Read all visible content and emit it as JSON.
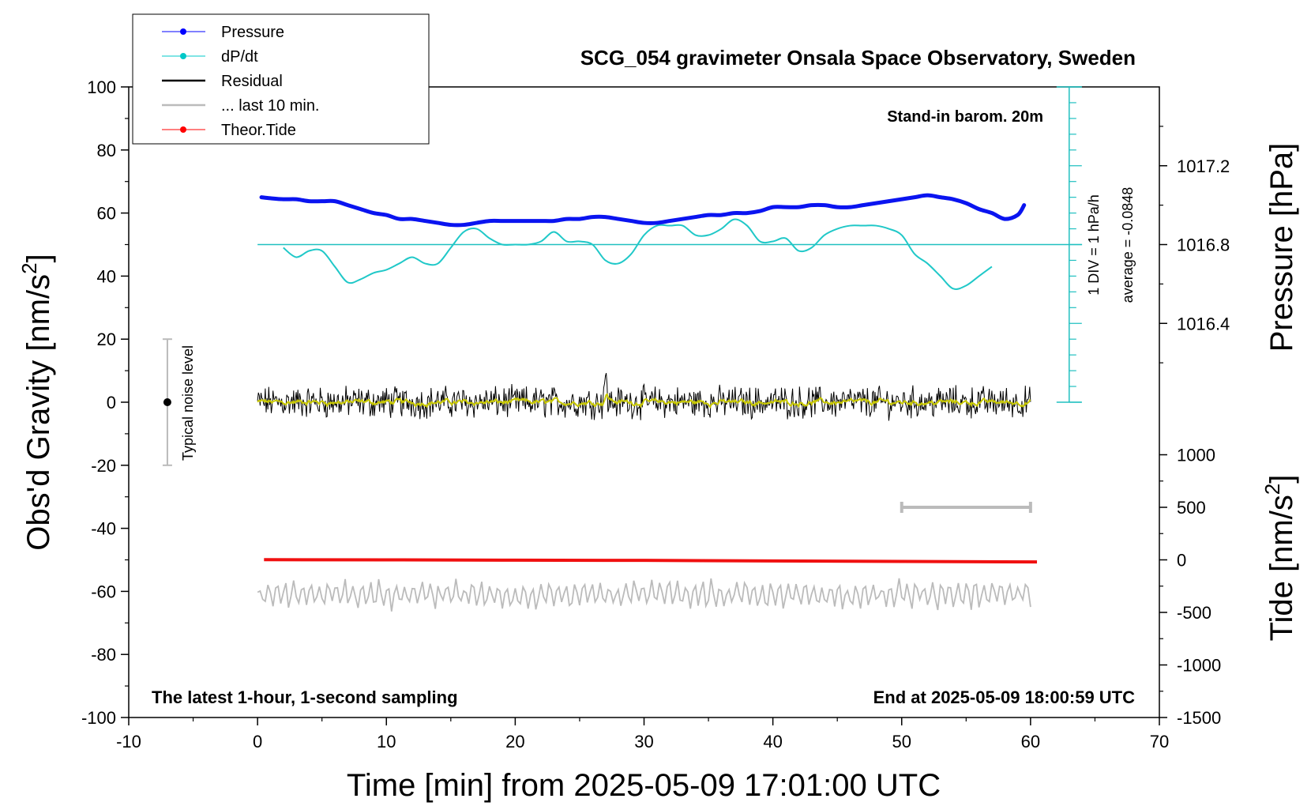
{
  "chart_data": {
    "type": "line",
    "title": "SCG_054 gravimeter Onsala Space Observatory, Sweden",
    "xlabel": "Time [min] from 2025-05-09 17:01:00 UTC",
    "ylabel": "Obs'd Gravity [nm/s",
    "ylabel_sup": "2",
    "ylabel_end": "]",
    "y2label": "Pressure [hPa]",
    "y3label": "Tide [nm/s",
    "y3label_sup": "2",
    "y3label_end": "]",
    "xlim": [
      -10,
      70
    ],
    "ylim": [
      -100,
      100
    ],
    "xticks": [
      "-10",
      "0",
      "10",
      "20",
      "30",
      "40",
      "50",
      "60",
      "70"
    ],
    "yticks": [
      "100",
      "80",
      "60",
      "40",
      "20",
      "0",
      "-20",
      "-40",
      "-60",
      "-80",
      "-100"
    ],
    "pressure_ticks": [
      "1017.2",
      "1016.8",
      "1016.4"
    ],
    "pressure_tick_values": [
      1017.2,
      1016.8,
      1016.4
    ],
    "tide_ticks": [
      "1000",
      "500",
      "0",
      "-500",
      "-1000",
      "-1500"
    ],
    "tide_tick_values": [
      1000,
      500,
      0,
      -500,
      -1000,
      -1500
    ],
    "grid": false,
    "legend_position": "top-left",
    "legend": [
      {
        "label": "Pressure",
        "color": "#0000ff",
        "style": "line-dot"
      },
      {
        "label": "dP/dt",
        "color": "#00c8c8",
        "style": "line-dot"
      },
      {
        "label": "Residual",
        "color": "#000000",
        "style": "line"
      },
      {
        "label": "... last 10 min.",
        "color": "#bbbbbb",
        "style": "line"
      },
      {
        "label": "Theor.Tide",
        "color": "#ff0000",
        "style": "line-dot"
      }
    ],
    "annotations": {
      "barometer": "Stand-in barom. 20m",
      "latest": "The latest 1-hour, 1-second sampling",
      "end": "End at 2025-05-09 18:00:59 UTC",
      "noise": "Typical noise level",
      "div": "1 DIV = 1 hPa/h",
      "average": "average = -0.0848"
    },
    "noise_range": [
      -20,
      20
    ],
    "noise_x": -7,
    "dpdt_baseline_y": 50,
    "dpdt_scale": {
      "x": 63,
      "ylim": [
        0,
        100
      ]
    },
    "last10_marker": {
      "x": [
        50,
        60
      ],
      "tide": 500
    },
    "series": [
      {
        "name": "Pressure",
        "axis": "pressure",
        "x": [
          0.3,
          1,
          2,
          3,
          4,
          5,
          6,
          7,
          8,
          9,
          10,
          11,
          12,
          13,
          14,
          15,
          16,
          17,
          18,
          19,
          20,
          21,
          22,
          23,
          24,
          25,
          26,
          27,
          28,
          29,
          30,
          31,
          32,
          33,
          34,
          35,
          36,
          37,
          38,
          39,
          40,
          41,
          42,
          43,
          44,
          45,
          46,
          47,
          48,
          49,
          50,
          51,
          52,
          53,
          54,
          55,
          56,
          57,
          58,
          59,
          59.5
        ],
        "y": [
          1017.04,
          1017.035,
          1017.03,
          1017.03,
          1017.02,
          1017.02,
          1017.02,
          1017.0,
          1016.98,
          1016.96,
          1016.95,
          1016.93,
          1016.93,
          1016.92,
          1016.91,
          1016.9,
          1016.9,
          1016.91,
          1016.92,
          1016.92,
          1016.92,
          1016.92,
          1016.92,
          1016.92,
          1016.93,
          1016.93,
          1016.94,
          1016.94,
          1016.93,
          1016.92,
          1016.91,
          1016.91,
          1016.92,
          1016.93,
          1016.94,
          1016.95,
          1016.95,
          1016.96,
          1016.96,
          1016.97,
          1016.99,
          1016.99,
          1016.99,
          1017.0,
          1017.0,
          1016.99,
          1016.99,
          1017.0,
          1017.01,
          1017.02,
          1017.03,
          1017.04,
          1017.05,
          1017.04,
          1017.03,
          1017.01,
          1016.98,
          1016.96,
          1016.93,
          1016.95,
          1017.0
        ]
      },
      {
        "name": "dP/dt",
        "axis": "gravity",
        "x": [
          2,
          3,
          4,
          5,
          6,
          7,
          8,
          9,
          10,
          11,
          12,
          13,
          14,
          15,
          16,
          17,
          18,
          19,
          20,
          21,
          22,
          23,
          24,
          25,
          26,
          27,
          28,
          29,
          30,
          31,
          32,
          33,
          34,
          35,
          36,
          37,
          38,
          39,
          40,
          41,
          42,
          43,
          44,
          45,
          46,
          47,
          48,
          49,
          50,
          51,
          52,
          53,
          54,
          55,
          56,
          57
        ],
        "y": [
          49,
          46,
          48,
          48,
          43,
          38,
          39,
          41,
          42,
          44,
          46,
          44,
          44,
          49,
          54,
          55,
          52,
          50,
          50,
          50,
          51,
          54,
          51,
          51,
          50,
          45,
          44,
          47,
          53,
          56,
          56,
          56,
          53,
          53,
          55,
          58,
          56,
          51,
          51,
          52,
          48,
          49,
          53,
          55,
          56,
          56,
          56,
          55,
          53,
          47,
          44,
          40,
          36,
          37,
          40,
          43
        ]
      },
      {
        "name": "Theor.Tide",
        "axis": "tide",
        "x": [
          0.5,
          10,
          20,
          30,
          40,
          50,
          60.5
        ],
        "y": [
          2,
          0,
          -3,
          -5,
          -10,
          -15,
          -20
        ]
      }
    ]
  }
}
